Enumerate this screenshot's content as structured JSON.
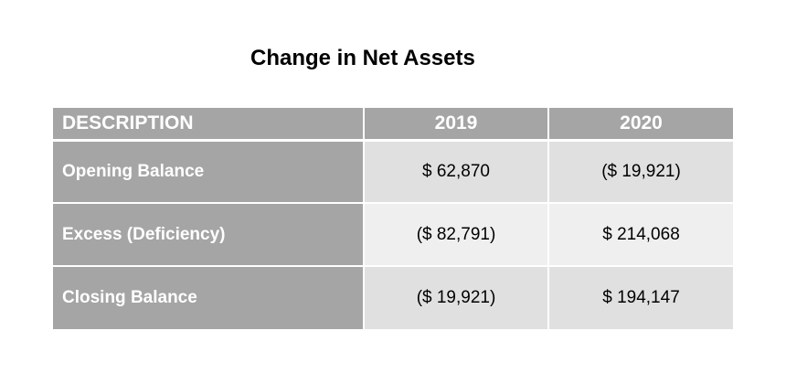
{
  "title": "Change in Net Assets",
  "table": {
    "headers": [
      "DESCRIPTION",
      "2019",
      "2020"
    ],
    "rows": [
      {
        "description": "Opening Balance",
        "y2019": "$ 62,870",
        "y2020": "($ 19,921)"
      },
      {
        "description": "Excess (Deficiency)",
        "y2019": "($ 82,791)",
        "y2020": "$ 214,068"
      },
      {
        "description": "Closing Balance",
        "y2019": "($ 19,921)",
        "y2020": "$ 194,147"
      }
    ]
  },
  "colors": {
    "header_bg": "#a5a5a5",
    "row_light": "#e0e0e0",
    "row_lighter": "#efefef",
    "header_text": "#ffffff"
  }
}
